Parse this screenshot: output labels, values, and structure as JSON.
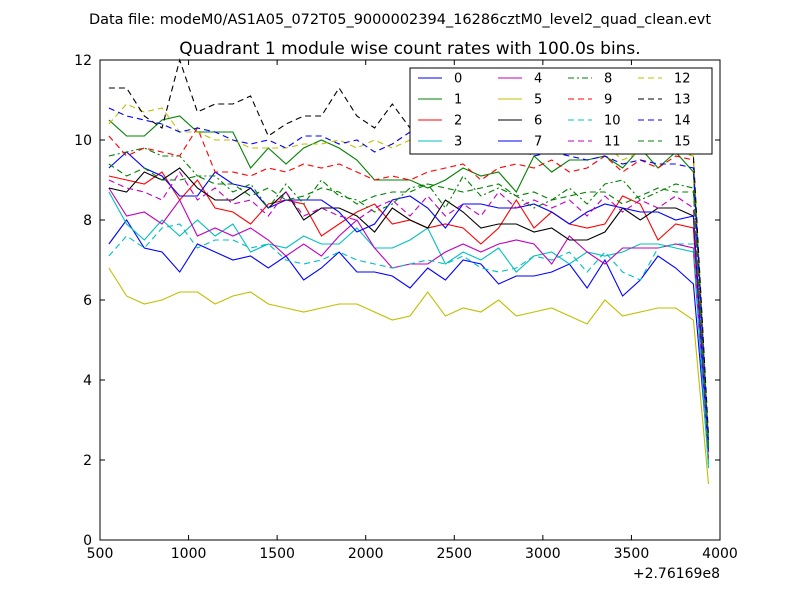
{
  "header": {
    "text": "Data file: modeM0/AS1A05_072T05_9000002394_16286cztM0_level2_quad_clean.evt"
  },
  "chart_data": {
    "type": "line",
    "title": "Quadrant 1 module wise count rates with 100.0s bins.",
    "xlabel": "",
    "ylabel": "",
    "x_offset_label": "+2.76169e8",
    "xlim": [
      500,
      4000
    ],
    "ylim": [
      0,
      12
    ],
    "xticks": [
      500,
      1000,
      1500,
      2000,
      2500,
      3000,
      3500,
      4000
    ],
    "yticks": [
      0,
      2,
      4,
      6,
      8,
      10,
      12
    ],
    "grid": false,
    "legend_position": "top-right",
    "legend_columns": 4,
    "x": [
      550,
      650,
      750,
      850,
      950,
      1050,
      1150,
      1250,
      1350,
      1450,
      1550,
      1650,
      1750,
      1850,
      1950,
      2050,
      2150,
      2250,
      2350,
      2450,
      2550,
      2650,
      2750,
      2850,
      2950,
      3050,
      3150,
      3250,
      3350,
      3450,
      3550,
      3650,
      3750,
      3850,
      3935
    ],
    "series": [
      {
        "name": "0",
        "color": "#0000ff",
        "dash": "solid",
        "values": [
          7.4,
          8.0,
          7.3,
          7.2,
          6.7,
          7.4,
          7.2,
          7.0,
          7.1,
          6.8,
          7.1,
          6.5,
          6.8,
          7.2,
          6.7,
          6.7,
          6.6,
          6.3,
          6.8,
          6.5,
          7.0,
          6.9,
          6.4,
          6.6,
          6.6,
          6.7,
          6.9,
          6.3,
          7.0,
          6.1,
          6.5,
          7.1,
          6.8,
          6.4,
          2.0
        ]
      },
      {
        "name": "1",
        "color": "#008000",
        "dash": "solid",
        "values": [
          10.5,
          10.1,
          10.1,
          10.5,
          10.6,
          10.2,
          10.2,
          10.2,
          9.3,
          9.8,
          9.4,
          9.8,
          10.0,
          9.8,
          9.5,
          9.0,
          9.0,
          9.0,
          8.8,
          9.0,
          9.3,
          9.1,
          9.2,
          8.7,
          9.6,
          9.2,
          9.5,
          9.5,
          9.6,
          9.3,
          9.8,
          9.3,
          9.7,
          9.2,
          2.5
        ]
      },
      {
        "name": "2",
        "color": "#ff0000",
        "dash": "solid",
        "values": [
          9.1,
          9.0,
          8.9,
          9.2,
          8.5,
          9.0,
          8.3,
          8.2,
          7.9,
          8.4,
          8.5,
          8.4,
          7.6,
          7.9,
          8.2,
          8.4,
          7.9,
          8.0,
          7.8,
          7.9,
          7.8,
          7.4,
          7.8,
          8.5,
          7.8,
          8.2,
          7.9,
          7.8,
          7.9,
          8.6,
          8.4,
          7.5,
          7.9,
          7.8,
          2.0
        ]
      },
      {
        "name": "3",
        "color": "#00bfbf",
        "dash": "solid",
        "values": [
          8.7,
          7.9,
          7.5,
          8.0,
          7.6,
          8.0,
          7.6,
          7.9,
          7.2,
          7.4,
          7.3,
          7.6,
          7.4,
          7.4,
          7.8,
          7.3,
          7.3,
          7.5,
          7.8,
          6.9,
          7.2,
          7.0,
          7.3,
          6.7,
          7.1,
          7.2,
          6.9,
          7.2,
          7.1,
          7.2,
          7.4,
          7.4,
          7.3,
          7.2,
          1.8
        ]
      },
      {
        "name": "4",
        "color": "#bf00bf",
        "dash": "solid",
        "values": [
          8.8,
          8.1,
          8.2,
          7.9,
          8.5,
          7.6,
          7.8,
          7.6,
          7.8,
          7.5,
          7.1,
          7.4,
          7.1,
          7.6,
          8.0,
          7.3,
          6.8,
          6.9,
          6.9,
          7.2,
          7.4,
          7.2,
          7.4,
          7.5,
          7.4,
          6.9,
          7.6,
          7.2,
          6.9,
          7.3,
          7.3,
          7.3,
          7.4,
          7.3,
          2.2
        ]
      },
      {
        "name": "5",
        "color": "#bfbf00",
        "dash": "solid",
        "values": [
          6.8,
          6.1,
          5.9,
          6.0,
          6.2,
          6.2,
          5.9,
          6.1,
          6.2,
          5.9,
          5.8,
          5.7,
          5.8,
          5.9,
          5.9,
          5.7,
          5.5,
          5.6,
          6.2,
          5.6,
          5.8,
          5.7,
          6.0,
          5.6,
          5.7,
          5.8,
          5.6,
          5.4,
          6.0,
          5.6,
          5.7,
          5.8,
          5.8,
          5.5,
          1.4
        ]
      },
      {
        "name": "6",
        "color": "#000000",
        "dash": "solid",
        "values": [
          8.8,
          8.7,
          9.2,
          9.0,
          9.3,
          8.8,
          8.5,
          8.5,
          8.8,
          8.3,
          8.7,
          8.0,
          8.3,
          8.3,
          8.1,
          7.7,
          8.3,
          8.0,
          7.8,
          8.5,
          8.2,
          7.8,
          7.9,
          7.9,
          7.7,
          7.8,
          7.5,
          7.5,
          7.7,
          8.3,
          8.0,
          8.3,
          8.3,
          8.1,
          2.2
        ]
      },
      {
        "name": "7",
        "color": "#0000ff",
        "dash": "solid",
        "values": [
          9.3,
          9.7,
          9.3,
          9.1,
          8.6,
          8.6,
          9.2,
          8.9,
          8.8,
          8.3,
          8.5,
          8.5,
          8.5,
          8.2,
          7.7,
          7.9,
          8.5,
          8.6,
          8.3,
          7.8,
          8.4,
          8.4,
          8.3,
          8.3,
          8.4,
          8.2,
          7.9,
          8.2,
          8.4,
          8.3,
          8.2,
          8.2,
          8.0,
          8.1,
          2.2
        ]
      },
      {
        "name": "8",
        "color": "#008000",
        "dash": "dashdot",
        "values": [
          9.6,
          9.7,
          9.8,
          9.6,
          9.6,
          9.1,
          9.1,
          8.7,
          8.9,
          8.3,
          8.9,
          8.4,
          9.0,
          8.6,
          8.5,
          8.2,
          8.4,
          8.8,
          8.9,
          8.3,
          9.1,
          8.6,
          8.8,
          8.6,
          8.3,
          8.5,
          8.8,
          8.4,
          8.9,
          9.0,
          8.5,
          8.7,
          8.9,
          8.8,
          2.3
        ]
      },
      {
        "name": "9",
        "color": "#ff0000",
        "dash": "dashed",
        "values": [
          10.1,
          9.6,
          9.8,
          9.7,
          9.6,
          10.3,
          9.2,
          9.2,
          9.1,
          9.3,
          9.2,
          9.4,
          9.3,
          9.4,
          9.2,
          9.0,
          9.1,
          9.0,
          9.2,
          9.3,
          9.4,
          9.0,
          9.3,
          9.4,
          9.3,
          9.5,
          9.2,
          9.3,
          9.6,
          9.2,
          9.5,
          9.3,
          9.6,
          9.5,
          2.4
        ]
      },
      {
        "name": "10",
        "color": "#00bfbf",
        "dash": "dashed",
        "values": [
          7.1,
          7.6,
          7.3,
          7.8,
          7.9,
          7.3,
          7.5,
          7.5,
          7.3,
          7.4,
          7.0,
          6.9,
          7.0,
          7.2,
          7.0,
          6.9,
          6.8,
          6.9,
          7.0,
          6.9,
          7.1,
          6.8,
          6.7,
          6.8,
          7.1,
          7.0,
          7.2,
          6.7,
          7.2,
          6.7,
          6.5,
          7.3,
          7.4,
          7.4,
          1.9
        ]
      },
      {
        "name": "11",
        "color": "#bf00bf",
        "dash": "dashed",
        "values": [
          9.0,
          8.8,
          8.7,
          8.5,
          9.2,
          8.5,
          8.8,
          8.4,
          8.5,
          8.1,
          8.7,
          8.1,
          8.3,
          8.1,
          8.0,
          8.3,
          8.5,
          8.1,
          8.6,
          8.1,
          8.4,
          8.1,
          8.7,
          8.3,
          8.5,
          8.3,
          8.5,
          8.1,
          8.6,
          8.2,
          8.5,
          8.3,
          8.6,
          8.3,
          2.2
        ]
      },
      {
        "name": "12",
        "color": "#bfbf00",
        "dash": "dashed",
        "values": [
          10.4,
          10.9,
          10.7,
          10.8,
          10.2,
          10.2,
          10.0,
          10.0,
          9.8,
          9.8,
          9.8,
          9.9,
          9.9,
          10.0,
          9.8,
          10.0,
          9.8,
          10.0,
          9.9,
          9.9,
          9.8,
          9.9,
          9.9,
          9.7,
          9.8,
          9.9,
          9.7,
          9.8,
          9.9,
          9.5,
          9.7,
          9.8,
          9.7,
          9.6,
          2.5
        ]
      },
      {
        "name": "13",
        "color": "#000000",
        "dash": "dashed",
        "values": [
          11.3,
          11.3,
          10.6,
          10.3,
          12.0,
          10.7,
          10.9,
          10.9,
          11.1,
          10.1,
          10.4,
          10.6,
          10.6,
          11.3,
          10.6,
          10.3,
          10.9,
          10.3,
          10.5,
          10.0,
          10.4,
          10.0,
          10.3,
          10.1,
          10.2,
          9.8,
          10.0,
          10.1,
          9.8,
          9.8,
          10.0,
          9.7,
          9.9,
          9.6,
          2.6
        ]
      },
      {
        "name": "14",
        "color": "#0000ff",
        "dash": "dashed",
        "values": [
          10.8,
          10.6,
          10.5,
          10.4,
          10.2,
          10.3,
          10.2,
          10.0,
          9.9,
          10.0,
          9.8,
          10.1,
          10.1,
          9.9,
          10.0,
          9.7,
          9.9,
          10.2,
          10.1,
          9.8,
          10.0,
          9.8,
          9.7,
          9.8,
          9.6,
          9.7,
          9.6,
          9.5,
          9.6,
          9.4,
          9.5,
          9.4,
          9.4,
          9.3,
          2.4
        ]
      },
      {
        "name": "15",
        "color": "#008000",
        "dash": "dashed",
        "values": [
          9.4,
          9.1,
          9.3,
          9.0,
          9.0,
          9.1,
          8.9,
          8.9,
          8.6,
          8.8,
          8.5,
          8.6,
          8.8,
          8.7,
          8.4,
          8.6,
          8.7,
          8.7,
          8.9,
          8.8,
          8.7,
          8.8,
          8.9,
          8.6,
          8.7,
          8.5,
          8.6,
          8.7,
          8.7,
          8.4,
          8.6,
          8.8,
          8.7,
          8.7,
          2.3
        ]
      }
    ]
  }
}
